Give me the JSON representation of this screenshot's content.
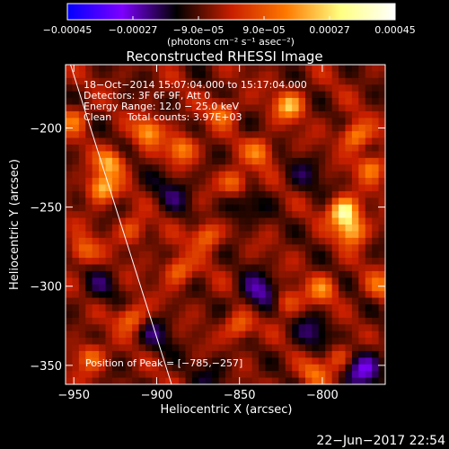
{
  "chart_data": {
    "type": "heatmap",
    "title": "Reconstructed RHESSI Image",
    "xlabel": "Heliocentric X (arcsec)",
    "ylabel": "Heliocentric Y (arcsec)",
    "xlim": [
      -955,
      -762
    ],
    "ylim": [
      -362,
      -160
    ],
    "xticks": [
      -950,
      -900,
      -850,
      -800
    ],
    "xtick_labels": [
      "−950",
      "−900",
      "−850",
      "−800"
    ],
    "yticks": [
      -200,
      -250,
      -300,
      -350
    ],
    "ytick_labels": [
      "−200",
      "−250",
      "−300",
      "−350"
    ],
    "grid": false,
    "colorbar": {
      "orientation": "horizontal",
      "placement": "top",
      "range": [
        -0.00045,
        0.00045
      ],
      "colors": [
        "#0000ff",
        "#7d00ff",
        "#000000",
        "#c81e00",
        "#ff7800",
        "#ffff80",
        "#ffffff"
      ],
      "tick_values": [
        -0.00045,
        -0.00027,
        -9e-05,
        9e-05,
        0.00027,
        0.00045
      ],
      "tick_labels": [
        "−0.00045",
        "−0.00027",
        "−9.0e−05",
        "9.0e−05",
        "0.00027",
        "0.00045"
      ],
      "unit_label": "(photons cm⁻² s⁻¹ asec⁻²)"
    },
    "annotations": [
      "18−Oct−2014 15:07:04.000 to 15:17:04.000",
      "Detectors: 3F 6F 9F, Att 0",
      "Energy Range: 12.0 − 25.0 keV",
      "Clean     Total counts: 3.97E+03"
    ],
    "peak_label": "Position of Peak = [−785,−257]",
    "peak": {
      "x": -785,
      "y": -257
    },
    "limb_line": {
      "x1": -952,
      "y1": -160,
      "x2": -891,
      "y2": -362
    },
    "blobs": [
      {
        "x": -787,
        "y": -253,
        "value": 0.00042
      },
      {
        "x": -782,
        "y": -265,
        "value": 0.0003
      },
      {
        "x": -933,
        "y": -238,
        "value": 0.0003
      },
      {
        "x": -928,
        "y": -222,
        "value": 0.00026
      },
      {
        "x": -905,
        "y": -202,
        "value": 0.00025
      },
      {
        "x": -885,
        "y": -213,
        "value": 0.00024
      },
      {
        "x": -820,
        "y": -186,
        "value": 0.00028
      },
      {
        "x": -780,
        "y": -205,
        "value": 0.00025
      },
      {
        "x": -770,
        "y": -225,
        "value": 0.00022
      },
      {
        "x": -853,
        "y": -235,
        "value": 0.00023
      },
      {
        "x": -838,
        "y": -215,
        "value": 0.0002
      },
      {
        "x": -870,
        "y": -268,
        "value": 0.00022
      },
      {
        "x": -887,
        "y": -290,
        "value": 0.0002
      },
      {
        "x": -915,
        "y": -320,
        "value": 0.00022
      },
      {
        "x": -940,
        "y": -345,
        "value": 0.0002
      },
      {
        "x": -850,
        "y": -325,
        "value": 0.0002
      },
      {
        "x": -822,
        "y": -310,
        "value": 0.00018
      },
      {
        "x": -800,
        "y": -302,
        "value": 0.0002
      },
      {
        "x": -790,
        "y": -345,
        "value": 0.00018
      },
      {
        "x": -805,
        "y": -355,
        "value": 0.00017
      },
      {
        "x": -945,
        "y": -278,
        "value": 0.0002
      },
      {
        "x": -950,
        "y": -195,
        "value": 0.00018
      },
      {
        "x": -860,
        "y": -190,
        "value": 0.00018
      },
      {
        "x": -915,
        "y": -265,
        "value": 0.00016
      },
      {
        "x": -765,
        "y": -300,
        "value": 0.00016
      }
    ],
    "minima": [
      {
        "x": -838,
        "y": -305,
        "value": -0.00018
      },
      {
        "x": -850,
        "y": -250,
        "value": -0.00012
      },
      {
        "x": -890,
        "y": -240,
        "value": -0.0001
      },
      {
        "x": -805,
        "y": -330,
        "value": -0.00012
      },
      {
        "x": -775,
        "y": -352,
        "value": -0.0002
      },
      {
        "x": -900,
        "y": -330,
        "value": -0.0001
      },
      {
        "x": -935,
        "y": -300,
        "value": -8e-05
      },
      {
        "x": -865,
        "y": -355,
        "value": -8e-05
      },
      {
        "x": -810,
        "y": -230,
        "value": -8e-05
      }
    ]
  },
  "footer": {
    "timestamp": "22−Jun−2017 22:54"
  }
}
